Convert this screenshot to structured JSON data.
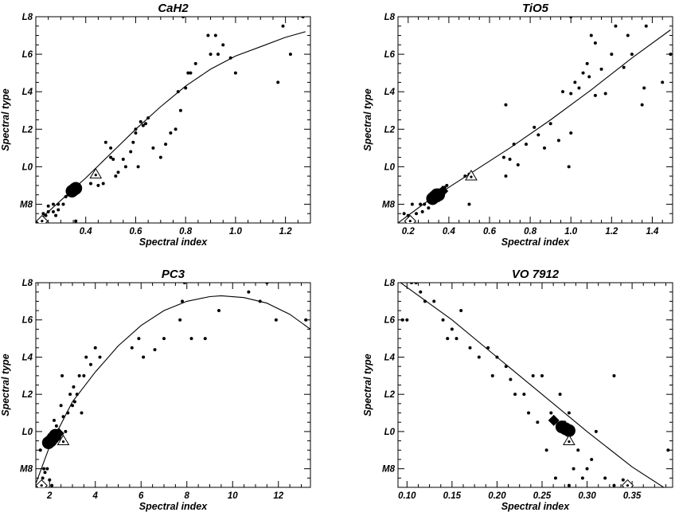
{
  "chart_data": [
    {
      "type": "scatter",
      "title": "CaH2",
      "xlabel": "Spectral index",
      "ylabel": "Spectral type",
      "xlim": [
        0.2,
        1.3
      ],
      "ylim": [
        -3,
        8
      ],
      "xticks": [
        0.4,
        0.6,
        0.8,
        1.0,
        1.2
      ],
      "xtick_labels": [
        "0.4",
        "0.6",
        "0.8",
        "1.0",
        "1.2"
      ],
      "yticks": [
        -2,
        0,
        2,
        4,
        6,
        8
      ],
      "ytick_labels": [
        "M8",
        "L0",
        "L2",
        "L4",
        "L6",
        "L8"
      ],
      "points": [
        [
          0.23,
          -2.5
        ],
        [
          0.24,
          -2.6
        ],
        [
          0.25,
          -2.1
        ],
        [
          0.25,
          -2.4
        ],
        [
          0.27,
          -2.0
        ],
        [
          0.27,
          -2.4
        ],
        [
          0.28,
          -2.6
        ],
        [
          0.29,
          -2.0
        ],
        [
          0.29,
          -2.3
        ],
        [
          0.31,
          -2.0
        ],
        [
          0.32,
          -1.6
        ],
        [
          0.33,
          -1.5
        ],
        [
          0.36,
          -2.9
        ],
        [
          0.42,
          -0.9
        ],
        [
          0.45,
          -1.0
        ],
        [
          0.47,
          -0.9
        ],
        [
          0.48,
          1.3
        ],
        [
          0.5,
          0.5
        ],
        [
          0.5,
          1.0
        ],
        [
          0.51,
          0.4
        ],
        [
          0.52,
          -0.5
        ],
        [
          0.53,
          -0.3
        ],
        [
          0.55,
          0.4
        ],
        [
          0.56,
          0.0
        ],
        [
          0.58,
          0.8
        ],
        [
          0.59,
          1.3
        ],
        [
          0.6,
          1.8
        ],
        [
          0.6,
          2.0
        ],
        [
          0.61,
          0.0
        ],
        [
          0.62,
          2.4
        ],
        [
          0.63,
          2.2
        ],
        [
          0.64,
          2.3
        ],
        [
          0.65,
          2.6
        ],
        [
          0.67,
          1.0
        ],
        [
          0.7,
          0.5
        ],
        [
          0.72,
          1.2
        ],
        [
          0.74,
          1.8
        ],
        [
          0.76,
          2.0
        ],
        [
          0.77,
          4.0
        ],
        [
          0.78,
          3.0
        ],
        [
          0.8,
          4.2
        ],
        [
          0.81,
          5.0
        ],
        [
          0.82,
          5.0
        ],
        [
          0.84,
          5.5
        ],
        [
          0.89,
          7.0
        ],
        [
          0.9,
          6.0
        ],
        [
          0.92,
          7.0
        ],
        [
          0.93,
          6.0
        ],
        [
          0.95,
          6.5
        ],
        [
          0.98,
          5.8
        ],
        [
          1.0,
          5.0
        ],
        [
          1.17,
          4.5
        ],
        [
          1.19,
          7.5
        ],
        [
          1.22,
          6.0
        ],
        [
          1.27,
          8.0
        ],
        [
          0.79,
          8.0
        ]
      ],
      "fit_curve": [
        [
          0.2,
          -3.0
        ],
        [
          0.3,
          -1.8
        ],
        [
          0.4,
          -0.6
        ],
        [
          0.5,
          0.7
        ],
        [
          0.6,
          2.0
        ],
        [
          0.7,
          3.2
        ],
        [
          0.8,
          4.3
        ],
        [
          0.9,
          5.2
        ],
        [
          1.0,
          5.9
        ],
        [
          1.1,
          6.4
        ],
        [
          1.2,
          6.9
        ],
        [
          1.28,
          7.2
        ]
      ],
      "big_circles": [
        [
          0.345,
          -1.3
        ],
        [
          0.355,
          -1.2
        ],
        [
          0.36,
          -1.15
        ]
      ],
      "big_diamonds": [],
      "open_triangles": [
        [
          0.44,
          -0.4
        ]
      ],
      "open_diamonds": [
        [
          0.225,
          -2.9
        ]
      ]
    },
    {
      "type": "scatter",
      "title": "TiO5",
      "xlabel": "Spectral index",
      "ylabel": "Spectral type",
      "xlim": [
        0.15,
        1.5
      ],
      "ylim": [
        -3,
        8
      ],
      "xticks": [
        0.2,
        0.4,
        0.6,
        0.8,
        1.0,
        1.2,
        1.4
      ],
      "xtick_labels": [
        "0.2",
        "0.4",
        "0.6",
        "0.8",
        "1.0",
        "1.2",
        "1.4"
      ],
      "yticks": [
        -2,
        0,
        2,
        4,
        6,
        8
      ],
      "ytick_labels": [
        "M8",
        "L0",
        "L2",
        "L4",
        "L6",
        "L8"
      ],
      "points": [
        [
          0.18,
          -2.5
        ],
        [
          0.2,
          -2.6
        ],
        [
          0.22,
          -2.0
        ],
        [
          0.24,
          -2.5
        ],
        [
          0.26,
          -2.0
        ],
        [
          0.27,
          -2.4
        ],
        [
          0.28,
          -2.0
        ],
        [
          0.3,
          -2.2
        ],
        [
          0.32,
          -1.9
        ],
        [
          0.35,
          -1.8
        ],
        [
          0.36,
          -1.5
        ],
        [
          0.38,
          -1.1
        ],
        [
          0.39,
          -1.0
        ],
        [
          0.48,
          -0.5
        ],
        [
          0.5,
          -0.4
        ],
        [
          0.5,
          -2.0
        ],
        [
          0.67,
          0.5
        ],
        [
          0.68,
          -0.5
        ],
        [
          0.68,
          3.3
        ],
        [
          0.7,
          0.4
        ],
        [
          0.72,
          1.2
        ],
        [
          0.74,
          0.1
        ],
        [
          0.78,
          1.2
        ],
        [
          0.82,
          2.1
        ],
        [
          0.84,
          1.7
        ],
        [
          0.87,
          1.0
        ],
        [
          0.9,
          2.3
        ],
        [
          0.94,
          1.4
        ],
        [
          0.96,
          4.0
        ],
        [
          0.99,
          0.0
        ],
        [
          1.0,
          1.8
        ],
        [
          1.0,
          3.9
        ],
        [
          1.02,
          4.5
        ],
        [
          1.04,
          4.2
        ],
        [
          1.06,
          5.0
        ],
        [
          1.08,
          5.5
        ],
        [
          1.09,
          4.8
        ],
        [
          1.1,
          7.0
        ],
        [
          1.12,
          3.8
        ],
        [
          1.12,
          6.6
        ],
        [
          1.15,
          5.2
        ],
        [
          1.17,
          3.9
        ],
        [
          1.2,
          6.0
        ],
        [
          1.22,
          7.5
        ],
        [
          1.26,
          5.3
        ],
        [
          1.28,
          7.0
        ],
        [
          1.3,
          6.0
        ],
        [
          1.35,
          3.3
        ],
        [
          1.36,
          4.2
        ],
        [
          1.37,
          7.5
        ],
        [
          1.45,
          4.5
        ],
        [
          1.49,
          6.0
        ],
        [
          1.0,
          8.0
        ]
      ],
      "fit_curve": [
        [
          0.15,
          -3.0
        ],
        [
          0.3,
          -1.8
        ],
        [
          0.5,
          -0.4
        ],
        [
          0.7,
          1.0
        ],
        [
          0.9,
          2.5
        ],
        [
          1.1,
          4.1
        ],
        [
          1.3,
          5.8
        ],
        [
          1.49,
          7.3
        ]
      ],
      "big_circles": [
        [
          0.32,
          -1.7
        ],
        [
          0.33,
          -1.6
        ],
        [
          0.34,
          -1.5
        ],
        [
          0.35,
          -1.5
        ]
      ],
      "big_diamonds": [
        [
          0.37,
          -1.3
        ]
      ],
      "open_triangles": [
        [
          0.51,
          -0.5
        ]
      ],
      "open_diamonds": [
        [
          0.21,
          -2.9
        ]
      ]
    },
    {
      "type": "scatter",
      "title": "PC3",
      "xlabel": "Spectral index",
      "ylabel": "Spectral type",
      "xlim": [
        1.4,
        13.4
      ],
      "ylim": [
        -3,
        8
      ],
      "xticks": [
        2,
        4,
        6,
        8,
        10,
        12
      ],
      "xtick_labels": [
        "2",
        "4",
        "6",
        "8",
        "10",
        "12"
      ],
      "yticks": [
        -2,
        0,
        2,
        4,
        6,
        8
      ],
      "ytick_labels": [
        "M8",
        "L0",
        "L2",
        "L4",
        "L6",
        "L8"
      ],
      "points": [
        [
          1.6,
          -1.0
        ],
        [
          1.7,
          -2.5
        ],
        [
          1.75,
          -2.0
        ],
        [
          1.8,
          -2.2
        ],
        [
          1.9,
          -2.0
        ],
        [
          2.0,
          -2.6
        ],
        [
          2.1,
          -2.9
        ],
        [
          2.2,
          0.6
        ],
        [
          2.3,
          0.3
        ],
        [
          2.4,
          -0.4
        ],
        [
          2.5,
          1.4
        ],
        [
          2.55,
          3.0
        ],
        [
          2.6,
          0.8
        ],
        [
          2.7,
          0.0
        ],
        [
          2.8,
          1.0
        ],
        [
          2.9,
          2.0
        ],
        [
          3.0,
          1.4
        ],
        [
          3.05,
          2.4
        ],
        [
          3.1,
          1.6
        ],
        [
          3.2,
          2.0
        ],
        [
          3.3,
          3.0
        ],
        [
          3.4,
          1.0
        ],
        [
          3.5,
          3.0
        ],
        [
          3.6,
          4.0
        ],
        [
          3.8,
          3.6
        ],
        [
          4.0,
          4.5
        ],
        [
          4.2,
          4.0
        ],
        [
          5.6,
          4.5
        ],
        [
          5.9,
          5.0
        ],
        [
          6.1,
          4.0
        ],
        [
          6.6,
          4.4
        ],
        [
          7.0,
          5.0
        ],
        [
          7.7,
          6.0
        ],
        [
          7.8,
          7.0
        ],
        [
          7.9,
          8.0
        ],
        [
          8.2,
          5.0
        ],
        [
          8.8,
          5.0
        ],
        [
          9.4,
          6.5
        ],
        [
          10.7,
          7.5
        ],
        [
          11.2,
          7.0
        ],
        [
          11.5,
          8.0
        ],
        [
          11.9,
          6.0
        ],
        [
          13.2,
          6.0
        ]
      ],
      "fit_curve": [
        [
          1.4,
          -2.8
        ],
        [
          2.0,
          -0.8
        ],
        [
          3.0,
          1.6
        ],
        [
          4.0,
          3.2
        ],
        [
          5.0,
          4.6
        ],
        [
          6.0,
          5.7
        ],
        [
          7.0,
          6.5
        ],
        [
          8.0,
          7.0
        ],
        [
          9.0,
          7.25
        ],
        [
          9.5,
          7.3
        ],
        [
          10.5,
          7.2
        ],
        [
          11.5,
          6.9
        ],
        [
          12.5,
          6.3
        ],
        [
          13.4,
          5.5
        ]
      ],
      "big_circles": [
        [
          1.95,
          -0.6
        ],
        [
          2.05,
          -0.5
        ],
        [
          2.15,
          -0.35
        ],
        [
          2.25,
          -0.2
        ]
      ],
      "big_diamonds": [
        [
          2.4,
          -0.1
        ]
      ],
      "open_triangles": [
        [
          2.6,
          -0.5
        ]
      ],
      "open_diamonds": [
        [
          1.65,
          -2.9
        ]
      ]
    },
    {
      "type": "scatter",
      "title": "VO 7912",
      "xlabel": "Spectral index",
      "ylabel": "Spectral type",
      "xlim": [
        0.09,
        0.395
      ],
      "ylim": [
        -3,
        8
      ],
      "xticks": [
        0.1,
        0.15,
        0.2,
        0.25,
        0.3,
        0.35
      ],
      "xtick_labels": [
        "0.10",
        "0.15",
        "0.20",
        "0.25",
        "0.30",
        "0.35"
      ],
      "yticks": [
        -2,
        0,
        2,
        4,
        6,
        8
      ],
      "ytick_labels": [
        "M8",
        "L0",
        "L2",
        "L4",
        "L6",
        "L8"
      ],
      "points": [
        [
          0.095,
          6.0
        ],
        [
          0.1,
          6.0
        ],
        [
          0.105,
          8.0
        ],
        [
          0.11,
          8.0
        ],
        [
          0.115,
          7.5
        ],
        [
          0.12,
          7.0
        ],
        [
          0.13,
          7.0
        ],
        [
          0.14,
          6.0
        ],
        [
          0.145,
          5.0
        ],
        [
          0.15,
          5.5
        ],
        [
          0.155,
          5.0
        ],
        [
          0.16,
          6.5
        ],
        [
          0.17,
          4.5
        ],
        [
          0.18,
          4.0
        ],
        [
          0.19,
          4.5
        ],
        [
          0.195,
          3.0
        ],
        [
          0.2,
          4.0
        ],
        [
          0.21,
          3.5
        ],
        [
          0.215,
          2.8
        ],
        [
          0.22,
          2.0
        ],
        [
          0.23,
          2.0
        ],
        [
          0.235,
          1.0
        ],
        [
          0.24,
          3.0
        ],
        [
          0.245,
          0.5
        ],
        [
          0.25,
          3.0
        ],
        [
          0.255,
          -1.0
        ],
        [
          0.26,
          1.0
        ],
        [
          0.265,
          -2.5
        ],
        [
          0.27,
          2.0
        ],
        [
          0.275,
          0.5
        ],
        [
          0.28,
          1.0
        ],
        [
          0.285,
          -2.0
        ],
        [
          0.29,
          -1.0
        ],
        [
          0.295,
          -2.5
        ],
        [
          0.3,
          -2.0
        ],
        [
          0.305,
          -1.5
        ],
        [
          0.31,
          0.0
        ],
        [
          0.32,
          -2.5
        ],
        [
          0.33,
          -2.9
        ],
        [
          0.34,
          -2.6
        ],
        [
          0.33,
          3.0
        ],
        [
          0.39,
          -1.0
        ],
        [
          0.28,
          -2.9
        ]
      ],
      "fit_curve": [
        [
          0.09,
          8.1
        ],
        [
          0.15,
          6.0
        ],
        [
          0.2,
          4.0
        ],
        [
          0.25,
          2.0
        ],
        [
          0.3,
          0.0
        ],
        [
          0.35,
          -1.9
        ],
        [
          0.385,
          -3.0
        ]
      ],
      "big_circles": [
        [
          0.272,
          0.25
        ],
        [
          0.276,
          0.15
        ],
        [
          0.28,
          0.05
        ]
      ],
      "big_diamonds": [
        [
          0.263,
          0.6
        ]
      ],
      "open_triangles": [
        [
          0.28,
          -0.5
        ]
      ],
      "open_diamonds": [
        [
          0.345,
          -2.9
        ]
      ]
    }
  ]
}
